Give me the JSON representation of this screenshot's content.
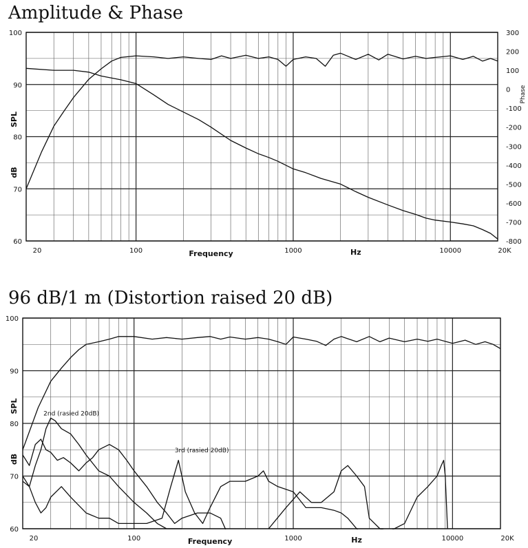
{
  "chart_data": [
    {
      "type": "line",
      "title": "Amplitude & Phase",
      "xlabel": "Frequency",
      "xunit": "Hz",
      "ylabel_left": [
        "SPL",
        "dB"
      ],
      "ylabel_right": "Phase",
      "xscale": "log",
      "xlim": [
        20,
        20000
      ],
      "ylim": [
        60,
        100
      ],
      "y2lim": [
        -800,
        300
      ],
      "grid": true,
      "x_ticks": [
        "20",
        "100",
        "1000",
        "10000",
        "20K"
      ],
      "y_ticks": [
        "60",
        "70",
        "80",
        "90",
        "100"
      ],
      "y2_ticks": [
        "300",
        "200",
        "100",
        "0",
        "-100",
        "-200",
        "-300",
        "-400",
        "-500",
        "-600",
        "-700",
        "-800"
      ],
      "series": [
        {
          "axis": "left",
          "points": [
            [
              20,
              70
            ],
            [
              25,
              77
            ],
            [
              30,
              82
            ],
            [
              35,
              85
            ],
            [
              40,
              87.5
            ],
            [
              50,
              91
            ],
            [
              60,
              93
            ],
            [
              70,
              94.5
            ],
            [
              80,
              95.2
            ],
            [
              100,
              95.5
            ],
            [
              130,
              95.3
            ],
            [
              160,
              95
            ],
            [
              200,
              95.3
            ],
            [
              250,
              95
            ],
            [
              300,
              94.8
            ],
            [
              350,
              95.5
            ],
            [
              400,
              95
            ],
            [
              500,
              95.6
            ],
            [
              600,
              95
            ],
            [
              700,
              95.3
            ],
            [
              800,
              94.8
            ],
            [
              900,
              93.5
            ],
            [
              1000,
              94.8
            ],
            [
              1200,
              95.3
            ],
            [
              1400,
              95
            ],
            [
              1600,
              93.5
            ],
            [
              1800,
              95.6
            ],
            [
              2000,
              96
            ],
            [
              2500,
              94.8
            ],
            [
              3000,
              95.8
            ],
            [
              3500,
              94.7
            ],
            [
              4000,
              95.8
            ],
            [
              5000,
              94.9
            ],
            [
              6000,
              95.4
            ],
            [
              7000,
              95
            ],
            [
              8000,
              95.2
            ],
            [
              10000,
              95.5
            ],
            [
              12000,
              94.8
            ],
            [
              14000,
              95.4
            ],
            [
              16000,
              94.5
            ],
            [
              18000,
              95
            ],
            [
              20000,
              94.5
            ]
          ]
        },
        {
          "axis": "right",
          "points": [
            [
              20,
              110
            ],
            [
              30,
              100
            ],
            [
              40,
              100
            ],
            [
              50,
              90
            ],
            [
              60,
              70
            ],
            [
              80,
              50
            ],
            [
              100,
              30
            ],
            [
              130,
              -30
            ],
            [
              160,
              -80
            ],
            [
              200,
              -120
            ],
            [
              250,
              -160
            ],
            [
              300,
              -200
            ],
            [
              400,
              -270
            ],
            [
              500,
              -310
            ],
            [
              600,
              -340
            ],
            [
              700,
              -360
            ],
            [
              800,
              -380
            ],
            [
              1000,
              -420
            ],
            [
              1200,
              -440
            ],
            [
              1500,
              -470
            ],
            [
              2000,
              -500
            ],
            [
              2500,
              -540
            ],
            [
              3000,
              -570
            ],
            [
              4000,
              -610
            ],
            [
              5000,
              -640
            ],
            [
              6000,
              -660
            ],
            [
              7000,
              -680
            ],
            [
              8000,
              -690
            ],
            [
              10000,
              -700
            ],
            [
              12000,
              -710
            ],
            [
              14000,
              -720
            ],
            [
              16000,
              -740
            ],
            [
              18000,
              -760
            ],
            [
              20000,
              -790
            ]
          ]
        }
      ]
    },
    {
      "type": "line",
      "title": "96 dB/1 m (Distortion raised 20 dB)",
      "xlabel": "Frequency",
      "xunit": "Hz",
      "ylabel_left": [
        "SPL",
        "dB"
      ],
      "xscale": "log",
      "xlim": [
        20,
        20000
      ],
      "ylim": [
        60,
        100
      ],
      "grid": true,
      "x_ticks": [
        "20",
        "100",
        "1000",
        "10000",
        "20K"
      ],
      "y_ticks": [
        "60",
        "70",
        "80",
        "90",
        "100"
      ],
      "series": [
        {
          "name": "",
          "points": [
            [
              20,
              75
            ],
            [
              25,
              83
            ],
            [
              30,
              88
            ],
            [
              35,
              90.5
            ],
            [
              40,
              92.5
            ],
            [
              45,
              94
            ],
            [
              50,
              95
            ],
            [
              60,
              95.5
            ],
            [
              70,
              96
            ],
            [
              80,
              96.5
            ],
            [
              100,
              96.5
            ],
            [
              130,
              96
            ],
            [
              160,
              96.3
            ],
            [
              200,
              96
            ],
            [
              250,
              96.3
            ],
            [
              300,
              96.5
            ],
            [
              350,
              96
            ],
            [
              400,
              96.4
            ],
            [
              500,
              96
            ],
            [
              600,
              96.3
            ],
            [
              700,
              96
            ],
            [
              800,
              95.5
            ],
            [
              900,
              95
            ],
            [
              1000,
              96.4
            ],
            [
              1200,
              96
            ],
            [
              1400,
              95.6
            ],
            [
              1600,
              94.8
            ],
            [
              1800,
              96
            ],
            [
              2000,
              96.5
            ],
            [
              2500,
              95.5
            ],
            [
              3000,
              96.5
            ],
            [
              3500,
              95.5
            ],
            [
              4000,
              96.2
            ],
            [
              5000,
              95.5
            ],
            [
              6000,
              96
            ],
            [
              7000,
              95.6
            ],
            [
              8000,
              96
            ],
            [
              10000,
              95.2
            ],
            [
              12000,
              95.8
            ],
            [
              14000,
              95
            ],
            [
              16000,
              95.5
            ],
            [
              18000,
              95
            ],
            [
              20000,
              94.2
            ]
          ]
        },
        {
          "name": "2nd (rasied 20dB)",
          "points": [
            [
              20,
              74
            ],
            [
              22,
              72
            ],
            [
              24,
              76
            ],
            [
              26,
              77
            ],
            [
              28,
              75
            ],
            [
              30,
              74.5
            ],
            [
              33,
              73
            ],
            [
              36,
              73.5
            ],
            [
              40,
              72.5
            ],
            [
              45,
              71
            ],
            [
              50,
              72.5
            ],
            [
              55,
              73.5
            ],
            [
              60,
              75
            ],
            [
              70,
              76
            ],
            [
              80,
              75
            ],
            [
              90,
              73
            ],
            [
              100,
              71
            ],
            [
              120,
              68
            ],
            [
              140,
              65
            ],
            [
              160,
              63
            ],
            [
              180,
              61
            ],
            [
              200,
              62
            ],
            [
              250,
              63
            ],
            [
              300,
              63
            ],
            [
              350,
              62
            ],
            [
              400,
              58
            ],
            [
              500,
              57
            ],
            [
              600,
              56
            ]
          ]
        },
        {
          "name": "",
          "points": [
            [
              20,
              69
            ],
            [
              22,
              68
            ],
            [
              24,
              72
            ],
            [
              26,
              75
            ],
            [
              28,
              79
            ],
            [
              30,
              81
            ],
            [
              32,
              80.5
            ],
            [
              35,
              79
            ],
            [
              40,
              78
            ],
            [
              45,
              76
            ],
            [
              50,
              74
            ],
            [
              60,
              71
            ],
            [
              70,
              70
            ],
            [
              80,
              68
            ],
            [
              100,
              65
            ],
            [
              120,
              63
            ],
            [
              140,
              61
            ],
            [
              160,
              60
            ],
            [
              200,
              60
            ]
          ]
        },
        {
          "name": "3rd (rasied 20dB)",
          "points": [
            [
              20,
              70
            ],
            [
              22,
              68
            ],
            [
              24,
              65
            ],
            [
              26,
              63
            ],
            [
              28,
              64
            ],
            [
              30,
              66
            ],
            [
              35,
              68
            ],
            [
              40,
              66
            ],
            [
              50,
              63
            ],
            [
              60,
              62
            ],
            [
              70,
              62
            ],
            [
              80,
              61
            ],
            [
              100,
              61
            ],
            [
              120,
              61
            ],
            [
              150,
              62
            ],
            [
              170,
              68
            ],
            [
              190,
              73
            ],
            [
              210,
              67
            ],
            [
              240,
              63
            ],
            [
              270,
              61
            ],
            [
              300,
              64
            ],
            [
              350,
              68
            ],
            [
              400,
              69
            ],
            [
              500,
              69
            ],
            [
              600,
              70
            ],
            [
              650,
              71
            ],
            [
              700,
              69
            ],
            [
              800,
              68
            ],
            [
              1000,
              67
            ],
            [
              1200,
              64
            ],
            [
              1500,
              64
            ],
            [
              1800,
              63.5
            ],
            [
              2000,
              63
            ],
            [
              2200,
              62
            ],
            [
              2500,
              60
            ],
            [
              3000,
              58
            ]
          ]
        },
        {
          "name": "",
          "points": [
            [
              700,
              60
            ],
            [
              900,
              64
            ],
            [
              1100,
              67
            ],
            [
              1300,
              65
            ],
            [
              1500,
              65
            ],
            [
              1800,
              67
            ],
            [
              2000,
              71
            ],
            [
              2200,
              72
            ],
            [
              2500,
              70
            ],
            [
              2800,
              68
            ],
            [
              3000,
              62
            ],
            [
              3500,
              60
            ],
            [
              4000,
              59.5
            ],
            [
              5000,
              61
            ],
            [
              6000,
              66
            ],
            [
              7000,
              68
            ],
            [
              8000,
              70
            ],
            [
              8500,
              72
            ],
            [
              8800,
              73
            ],
            [
              9000,
              70
            ],
            [
              9300,
              60
            ]
          ]
        }
      ]
    }
  ]
}
